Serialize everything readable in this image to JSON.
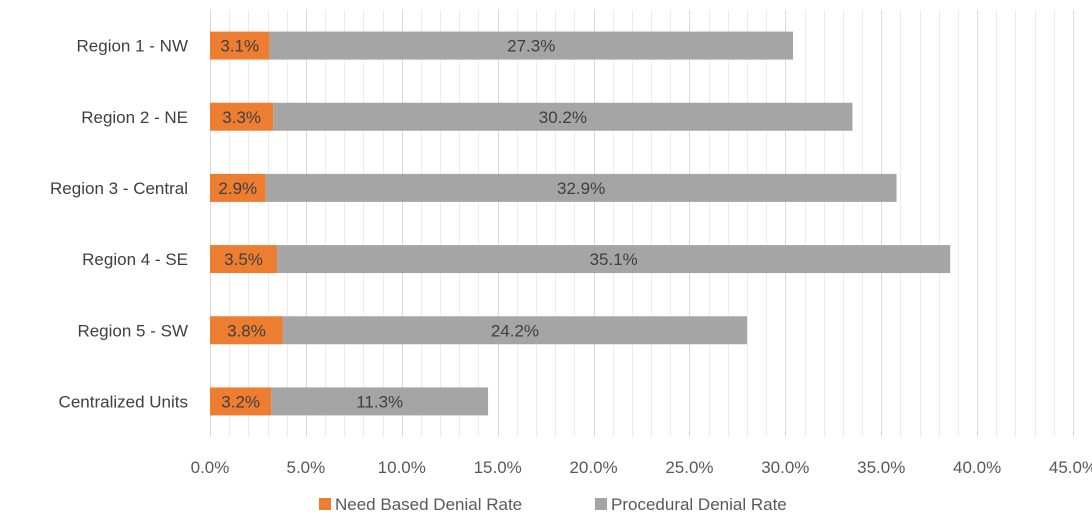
{
  "chart_data": {
    "type": "bar",
    "orientation": "horizontal",
    "stacked": true,
    "title": "",
    "xlabel": "",
    "ylabel": "",
    "categories": [
      "Region 1 - NW",
      "Region 2 - NE",
      "Region 3 - Central",
      "Region 4 - SE",
      "Region 5 - SW",
      "Centralized Units"
    ],
    "series": [
      {
        "name": "Need Based Denial Rate",
        "color": "#ED7D31",
        "values": [
          3.1,
          3.3,
          2.9,
          3.5,
          3.8,
          3.2
        ],
        "labels": [
          "3.1%",
          "3.3%",
          "2.9%",
          "3.5%",
          "3.8%",
          "3.2%"
        ]
      },
      {
        "name": "Procedural Denial Rate",
        "color": "#A5A5A5",
        "values": [
          27.3,
          30.2,
          32.9,
          35.1,
          24.2,
          11.3
        ],
        "labels": [
          "27.3%",
          "30.2%",
          "32.9%",
          "35.1%",
          "24.2%",
          "11.3%"
        ]
      }
    ],
    "xlim": [
      0,
      45
    ],
    "xticks": [
      0,
      5,
      10,
      15,
      20,
      25,
      30,
      35,
      40,
      45
    ],
    "xtick_labels": [
      "0.0%",
      "5.0%",
      "10.0%",
      "15.0%",
      "20.0%",
      "25.0%",
      "30.0%",
      "35.0%",
      "40.0%",
      "45.0%"
    ],
    "grid": true,
    "minor_grid": true,
    "legend_position": "bottom"
  }
}
